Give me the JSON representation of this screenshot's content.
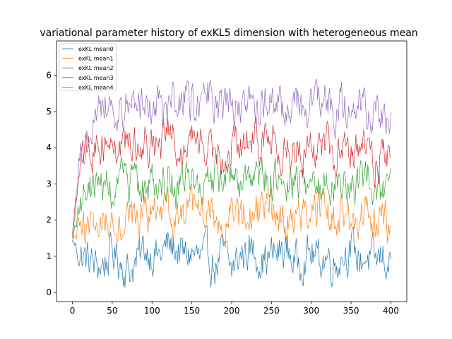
{
  "chart_data": {
    "type": "line",
    "title": "variational parameter history of exKL5 dimension with heterogeneous mean",
    "xlabel": "",
    "ylabel": "",
    "xlim": [
      -20,
      420
    ],
    "ylim": [
      -0.25,
      6.95
    ],
    "xticks": [
      0,
      50,
      100,
      150,
      200,
      250,
      300,
      350,
      400
    ],
    "yticks": [
      0,
      1,
      2,
      3,
      4,
      5,
      6
    ],
    "grid": false,
    "legend_position": "top-left",
    "n_points": 401,
    "series": [
      {
        "name": "exKL mean0",
        "color": "#1f77b4",
        "x": [
          0,
          10,
          20,
          30,
          40,
          50,
          60,
          70,
          80,
          90,
          100,
          110,
          120,
          130,
          140,
          150,
          160,
          170,
          180,
          190,
          200,
          210,
          220,
          230,
          240,
          250,
          260,
          270,
          280,
          290,
          300,
          310,
          320,
          330,
          340,
          350,
          360,
          370,
          380,
          390,
          400
        ],
        "values": [
          1.45,
          1.0,
          0.9,
          0.7,
          0.8,
          1.1,
          0.9,
          0.6,
          0.8,
          1.2,
          1.1,
          1.0,
          1.3,
          1.2,
          1.0,
          1.1,
          0.9,
          1.0,
          0.7,
          1.1,
          0.6,
          1.0,
          1.2,
          1.1,
          0.9,
          1.0,
          1.1,
          1.2,
          0.8,
          1.0,
          1.1,
          0.9,
          1.0,
          0.8,
          1.1,
          1.2,
          0.9,
          1.0,
          0.8,
          1.0,
          0.75
        ]
      },
      {
        "name": "exKL mean1",
        "color": "#ff7f0e",
        "x": [
          0,
          10,
          20,
          30,
          40,
          50,
          60,
          70,
          80,
          90,
          100,
          110,
          120,
          130,
          140,
          150,
          160,
          170,
          180,
          190,
          200,
          210,
          220,
          230,
          240,
          250,
          260,
          270,
          280,
          290,
          300,
          310,
          320,
          330,
          340,
          350,
          360,
          370,
          380,
          390,
          400
        ],
        "values": [
          1.5,
          1.7,
          1.8,
          1.9,
          2.0,
          2.1,
          1.9,
          2.2,
          2.0,
          2.1,
          2.3,
          1.9,
          2.2,
          2.0,
          2.1,
          2.3,
          2.0,
          2.2,
          2.1,
          1.9,
          2.2,
          2.0,
          2.1,
          2.3,
          2.0,
          2.4,
          2.1,
          2.0,
          2.2,
          2.1,
          2.0,
          2.3,
          2.1,
          1.9,
          2.2,
          2.0,
          2.1,
          2.3,
          2.0,
          2.2,
          1.8
        ]
      },
      {
        "name": "exKL mean2",
        "color": "#2ca02c",
        "x": [
          0,
          10,
          20,
          30,
          40,
          50,
          60,
          70,
          80,
          90,
          100,
          110,
          120,
          130,
          140,
          150,
          160,
          170,
          180,
          190,
          200,
          210,
          220,
          230,
          240,
          250,
          260,
          270,
          280,
          290,
          300,
          310,
          320,
          330,
          340,
          350,
          360,
          370,
          380,
          390,
          400
        ],
        "values": [
          1.4,
          2.6,
          2.8,
          3.0,
          3.0,
          2.8,
          3.1,
          2.9,
          3.0,
          2.8,
          3.1,
          3.0,
          3.2,
          2.9,
          3.0,
          3.1,
          3.0,
          2.9,
          3.2,
          3.0,
          3.1,
          3.0,
          2.9,
          3.1,
          3.2,
          3.0,
          3.1,
          2.9,
          3.0,
          3.2,
          3.0,
          2.8,
          3.1,
          3.0,
          3.0,
          3.1,
          2.9,
          3.2,
          3.0,
          2.9,
          3.3
        ]
      },
      {
        "name": "exKL mean3",
        "color": "#d62728",
        "x": [
          0,
          10,
          20,
          30,
          40,
          50,
          60,
          70,
          80,
          90,
          100,
          110,
          120,
          130,
          140,
          150,
          160,
          170,
          180,
          190,
          200,
          210,
          220,
          230,
          240,
          250,
          260,
          270,
          280,
          290,
          300,
          310,
          320,
          330,
          340,
          350,
          360,
          370,
          380,
          390,
          400
        ],
        "values": [
          1.6,
          3.6,
          3.9,
          4.0,
          4.1,
          4.2,
          3.9,
          4.3,
          4.0,
          4.2,
          4.1,
          3.9,
          4.4,
          4.1,
          4.0,
          4.3,
          4.0,
          4.2,
          4.1,
          3.8,
          4.2,
          4.0,
          4.1,
          4.3,
          4.0,
          4.2,
          3.9,
          4.0,
          4.1,
          3.8,
          4.1,
          4.0,
          4.2,
          3.7,
          4.0,
          4.1,
          3.9,
          4.2,
          3.6,
          3.9,
          3.4
        ]
      },
      {
        "name": "exKL mean4",
        "color": "#9467bd",
        "x": [
          0,
          10,
          20,
          30,
          40,
          50,
          60,
          70,
          80,
          90,
          100,
          110,
          120,
          130,
          140,
          150,
          160,
          170,
          180,
          190,
          200,
          210,
          220,
          230,
          240,
          250,
          260,
          270,
          280,
          290,
          300,
          310,
          320,
          330,
          340,
          350,
          360,
          370,
          380,
          390,
          400
        ],
        "values": [
          1.5,
          4.0,
          4.3,
          5.0,
          5.3,
          5.1,
          5.0,
          5.4,
          5.3,
          5.2,
          5.3,
          5.1,
          5.0,
          5.3,
          5.4,
          5.2,
          5.0,
          5.5,
          5.1,
          5.3,
          5.2,
          5.0,
          5.3,
          5.2,
          5.1,
          5.4,
          5.2,
          5.0,
          5.3,
          5.1,
          5.2,
          5.4,
          5.3,
          4.9,
          5.2,
          5.0,
          5.3,
          4.9,
          5.1,
          4.8,
          4.9
        ]
      }
    ]
  }
}
